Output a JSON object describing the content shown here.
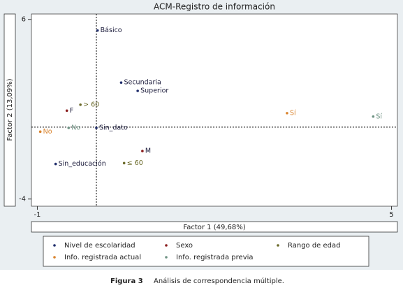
{
  "chart_data": {
    "type": "scatter",
    "title": "ACM-Registro de información",
    "xlabel": "Factor 1 (49,68%)",
    "ylabel": "Factor 2 (13,09%)",
    "xlim": [
      -1.1,
      5.1
    ],
    "ylim": [
      -4.4,
      6.3
    ],
    "xticks": [
      -1,
      5
    ],
    "yticks": [
      -4,
      6
    ],
    "reference_lines": {
      "x": 0,
      "y": 0
    },
    "series": [
      {
        "name": "Nivel de escolaridad",
        "color": "#1f2d6b",
        "labels": [
          "Básico",
          "Secundaria",
          "Superior",
          "Sin_dato",
          "Sin_educación"
        ],
        "x": [
          0.02,
          0.42,
          0.7,
          0.0,
          -0.69
        ],
        "values": [
          5.38,
          2.48,
          2.02,
          -0.04,
          -2.05
        ]
      },
      {
        "name": "Sexo",
        "color": "#8b1f1f",
        "labels": [
          "F",
          "M"
        ],
        "x": [
          -0.5,
          0.78
        ],
        "values": [
          0.92,
          -1.33
        ]
      },
      {
        "name": "Rango de edad",
        "color": "#6b6a2a",
        "labels": [
          "> 60",
          "≤ 60"
        ],
        "x": [
          -0.27,
          0.47
        ],
        "values": [
          1.25,
          -2.0
        ]
      },
      {
        "name": "Info. registrada actual",
        "color": "#d9822b",
        "labels": [
          "Sí",
          "No"
        ],
        "x": [
          3.23,
          -0.95
        ],
        "values": [
          0.78,
          -0.25
        ]
      },
      {
        "name": "Info. registrada previa",
        "color": "#6f9384",
        "labels": [
          "Sí",
          "No"
        ],
        "x": [
          4.69,
          -0.47
        ],
        "values": [
          0.59,
          -0.04
        ]
      }
    ],
    "caption_label": "Figura 3",
    "caption": "Análisis de correspondencia múltiple."
  }
}
